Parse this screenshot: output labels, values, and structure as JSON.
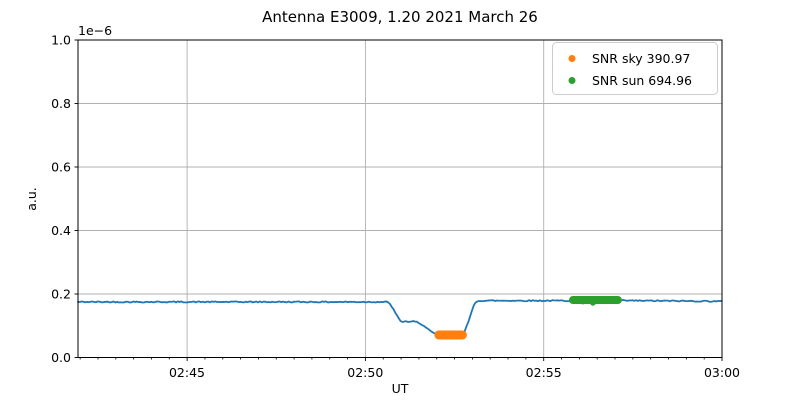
{
  "chart_data": {
    "type": "line",
    "title": "Antenna E3009, 1.20 2021 March 26",
    "xlabel": "UT",
    "ylabel": "a.u.",
    "offset_text": "1e−6",
    "grid": true,
    "x_axis": {
      "tick_labels": [
        "02:45",
        "02:50",
        "02:55",
        "03:00"
      ],
      "tick_minutes": [
        45,
        50,
        55,
        60
      ],
      "range_minutes": [
        41.94,
        60.0
      ],
      "minor_step_minutes": 0.5
    },
    "y_axis": {
      "tick_labels": [
        "0.0",
        "0.2",
        "0.4",
        "0.6",
        "0.8",
        "1.0"
      ],
      "ticks": [
        0.0,
        0.2,
        0.4,
        0.6,
        0.8,
        1.0
      ],
      "lim": [
        0.0,
        1.0
      ],
      "unit_scale": "1e-6"
    },
    "series": [
      {
        "name": "antenna-signal-trace",
        "kind": "line",
        "color": "#1f77b4",
        "linewidth": 1.8,
        "noise_amp": 0.0019,
        "keypoints": [
          [
            41.94,
            0.175
          ],
          [
            50.6,
            0.175
          ],
          [
            50.7,
            0.168
          ],
          [
            50.97,
            0.115
          ],
          [
            51.05,
            0.113
          ],
          [
            51.42,
            0.113
          ],
          [
            51.52,
            0.105
          ],
          [
            51.62,
            0.103
          ],
          [
            51.9,
            0.076
          ],
          [
            52.0,
            0.073
          ],
          [
            52.74,
            0.073
          ],
          [
            52.9,
            0.115
          ],
          [
            53.05,
            0.168
          ],
          [
            53.15,
            0.179
          ],
          [
            57.5,
            0.179
          ],
          [
            60.0,
            0.177
          ]
        ]
      },
      {
        "name": "snr-sky-markers",
        "label": "SNR sky 390.97",
        "kind": "capsule",
        "color": "#ff7f0e",
        "x_range": [
          52.06,
          52.72
        ],
        "y": 0.071,
        "thickness": 9,
        "extra_dots": []
      },
      {
        "name": "snr-sun-markers",
        "label": "SNR sun 694.96",
        "kind": "capsule",
        "color": "#2ca02c",
        "x_range": [
          55.82,
          57.08
        ],
        "y": 0.181,
        "thickness": 8,
        "extra_dots": [
          [
            56.38,
            0.172
          ],
          [
            56.1,
            0.176
          ],
          [
            56.9,
            0.178
          ]
        ]
      }
    ],
    "legend": {
      "entries": [
        {
          "label": "SNR sky 390.97",
          "color": "#ff7f0e"
        },
        {
          "label": "SNR sun 694.96",
          "color": "#2ca02c"
        }
      ]
    },
    "style": {
      "grid_color": "#b0b0b0",
      "spine_color": "#000000",
      "tick_color": "#000000",
      "legend_border_color": "#cccccc",
      "background": "#ffffff"
    }
  }
}
